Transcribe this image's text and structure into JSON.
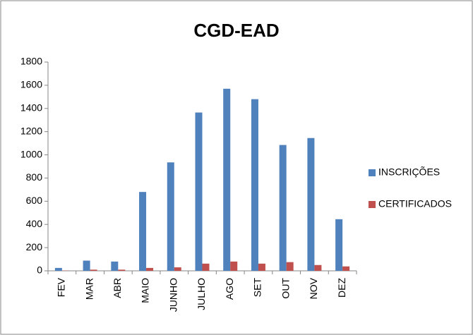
{
  "chart_data": {
    "type": "bar",
    "title": "CGD-EAD",
    "categories": [
      "FEV",
      "MAR",
      "ABR",
      "MAIO",
      "JUNHO",
      "JULHO",
      "AGO",
      "SET",
      "OUT",
      "NOV",
      "DEZ"
    ],
    "series": [
      {
        "name": "INSCRIÇÕES",
        "color": "#4f81bd",
        "values": [
          25,
          88,
          80,
          680,
          935,
          1365,
          1570,
          1480,
          1085,
          1145,
          445
        ]
      },
      {
        "name": "CERTIFICADOS",
        "color": "#c0504d",
        "values": [
          2,
          10,
          10,
          25,
          30,
          62,
          80,
          62,
          75,
          50,
          38
        ]
      }
    ],
    "ylim": [
      0,
      1800
    ],
    "yticks": [
      0,
      200,
      400,
      600,
      800,
      1000,
      1200,
      1400,
      1600,
      1800
    ],
    "grid": false,
    "legend": "right"
  }
}
